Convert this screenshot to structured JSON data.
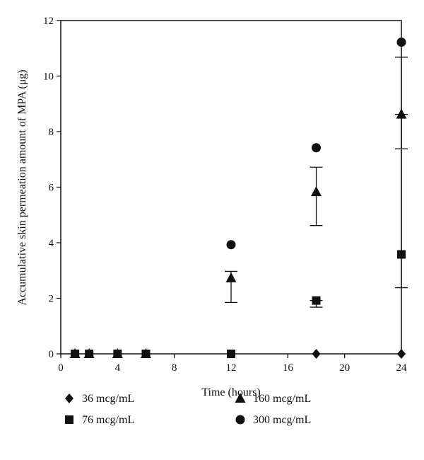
{
  "chart_data": {
    "type": "scatter",
    "xlabel": "Time (hours)",
    "ylabel": "Accumulative skin permeation amount of MPA (μg)",
    "xlim": [
      0,
      24
    ],
    "ylim": [
      0,
      12
    ],
    "xticks": [
      0,
      4,
      8,
      12,
      16,
      20,
      24
    ],
    "yticks": [
      0,
      2,
      4,
      6,
      8,
      10,
      12
    ],
    "grid": false,
    "legend_position": "bottom",
    "series": [
      {
        "name": "36 mcg/mL",
        "marker": "diamond",
        "points": [
          {
            "x": 18,
            "y": 0
          },
          {
            "x": 24,
            "y": 0
          }
        ]
      },
      {
        "name": "76 mcg/mL",
        "marker": "square",
        "points": [
          {
            "x": 1,
            "y": 0
          },
          {
            "x": 2,
            "y": 0
          },
          {
            "x": 4,
            "y": 0
          },
          {
            "x": 6,
            "y": 0
          },
          {
            "x": 12,
            "y": 0
          },
          {
            "x": 18,
            "y": 1.92
          },
          {
            "x": 24,
            "y": 3.58
          }
        ]
      },
      {
        "name": "160 mcg/mL",
        "marker": "triangle",
        "points": [
          {
            "x": 1,
            "y": 0
          },
          {
            "x": 2,
            "y": 0
          },
          {
            "x": 4,
            "y": 0
          },
          {
            "x": 6,
            "y": 0
          },
          {
            "x": 12,
            "y": 2.73
          },
          {
            "x": 18,
            "y": 5.83
          },
          {
            "x": 24,
            "y": 8.62
          }
        ]
      },
      {
        "name": "300 mcg/mL",
        "marker": "circle",
        "points": [
          {
            "x": 12,
            "y": 3.93
          },
          {
            "x": 18,
            "y": 7.42
          },
          {
            "x": 24,
            "y": 11.22
          }
        ]
      }
    ],
    "error_bars": [
      {
        "x": 12,
        "y_low": 1.85,
        "y_high": 2.97
      },
      {
        "x": 18,
        "y_low": 4.62,
        "y_high": 6.72
      },
      {
        "x": 18,
        "y_low": 1.68,
        "y_high": 1.92
      },
      {
        "x": 24,
        "y_low": 2.38,
        "y_high": 10.68
      },
      {
        "x": 24,
        "y_low": 7.38,
        "y_high": 8.62
      }
    ]
  }
}
